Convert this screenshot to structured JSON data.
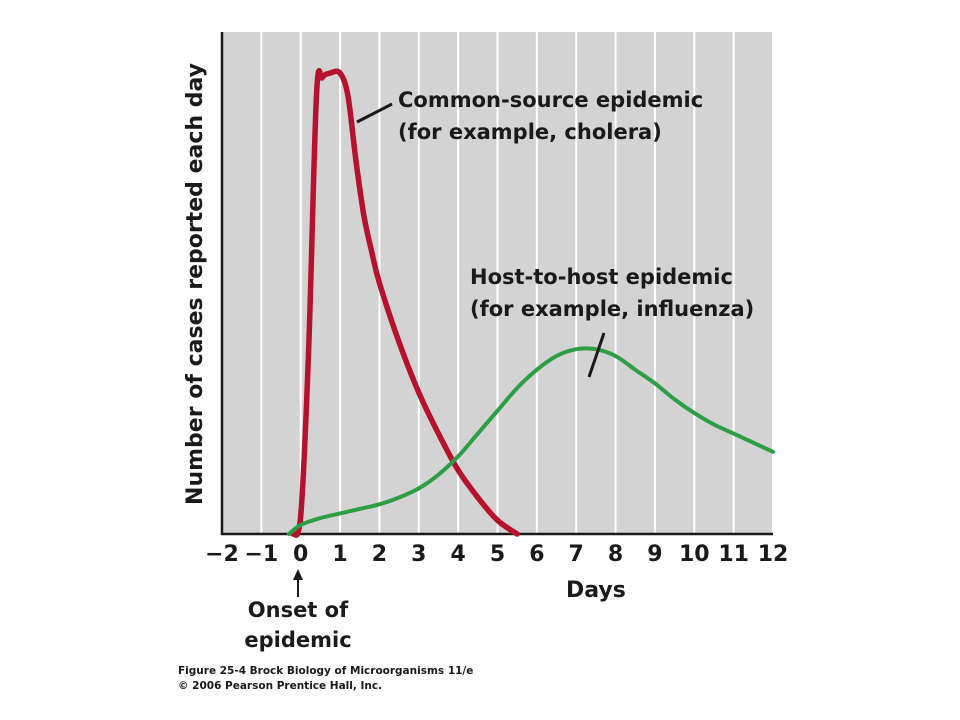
{
  "chart_data": {
    "type": "line",
    "xlabel": "Days",
    "ylabel": "Number of cases reported each day",
    "xlim": [
      -2,
      12
    ],
    "xticks": [
      "−2",
      "−1",
      "0",
      "1",
      "2",
      "3",
      "4",
      "5",
      "6",
      "7",
      "8",
      "9",
      "10",
      "11",
      "12"
    ],
    "grid": true,
    "series": [
      {
        "name": "Common-source epidemic (for example, cholera)",
        "color": "#b5122e",
        "x": [
          -0.2,
          0,
          0.2,
          0.4,
          0.55,
          0.75,
          1.0,
          1.2,
          1.4,
          1.6,
          1.8,
          2.0,
          2.5,
          3.0,
          3.5,
          4.0,
          4.5,
          5.0,
          5.5
        ],
        "y": [
          0,
          4,
          40,
          96,
          100,
          101,
          101,
          96,
          82,
          70,
          62,
          55,
          42,
          31,
          22,
          14,
          8,
          3,
          0
        ]
      },
      {
        "name": "Host-to-host epidemic (for example, influenza)",
        "color": "#2e9e46",
        "x": [
          -0.3,
          0,
          0.5,
          1,
          1.5,
          2,
          2.5,
          3,
          3.5,
          4,
          4.5,
          5,
          5.5,
          6,
          6.5,
          7,
          7.5,
          8,
          8.5,
          9,
          9.5,
          10,
          10.5,
          11,
          11.5,
          12
        ],
        "y": [
          0,
          2,
          3.5,
          4.5,
          5.5,
          6.5,
          8,
          10,
          13,
          17,
          22,
          27,
          32,
          36,
          39,
          40.5,
          40.5,
          39,
          36,
          33,
          29.5,
          26.5,
          24,
          22,
          20,
          18
        ]
      }
    ],
    "annotations": [
      {
        "lines": [
          "Common-source epidemic",
          "(for example, cholera)"
        ]
      },
      {
        "lines": [
          "Host-to-host epidemic",
          "(for example, influenza)"
        ]
      },
      {
        "lines": [
          "Onset of",
          "epidemic"
        ]
      }
    ]
  },
  "caption": {
    "line1": "Figure 25-4  Brock Biology of Microorganisms 11/e",
    "line2": "© 2006 Pearson Prentice Hall, Inc."
  }
}
